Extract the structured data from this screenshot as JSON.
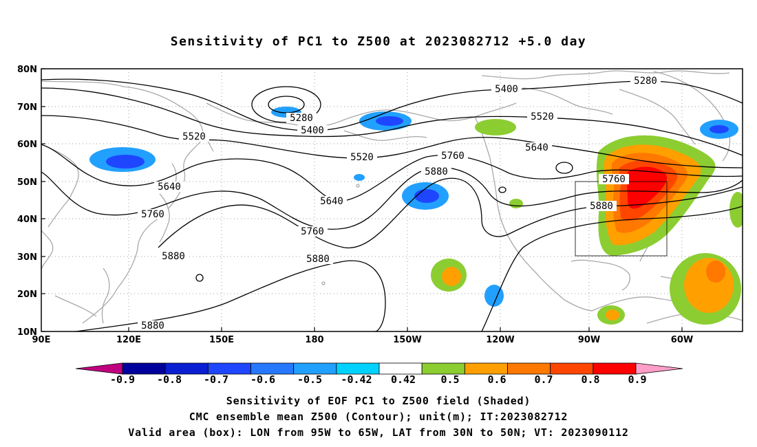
{
  "title": "Sensitivity of PC1 to Z500 at 2023082712 +5.0 day",
  "lat_labels": [
    "80N",
    "70N",
    "60N",
    "50N",
    "40N",
    "30N",
    "20N",
    "10N"
  ],
  "lon_labels": [
    "90E",
    "120E",
    "150E",
    "180",
    "150W",
    "120W",
    "90W",
    "60W"
  ],
  "colorbar": {
    "ticks": [
      "-0.9",
      "-0.8",
      "-0.7",
      "-0.6",
      "-0.5",
      "-0.42",
      "0.42",
      "0.5",
      "0.6",
      "0.7",
      "0.8",
      "0.9"
    ],
    "colors": [
      "#c0007f",
      "#00009c",
      "#0a1ed2",
      "#1e46ff",
      "#2678ff",
      "#22a0ff",
      "#00d2ff",
      "#ffffff",
      "#8ccd32",
      "#ffa000",
      "#ff7800",
      "#ff4600",
      "#ff0000",
      "#ff9ec8"
    ]
  },
  "contour_labels": [
    "5280",
    "5400",
    "5520",
    "5640",
    "5760",
    "5880"
  ],
  "caption": {
    "line1": "Sensitivity of EOF PC1 to Z500 field (Shaded)",
    "line2": "CMC ensemble mean Z500 (Contour); unit(m); IT:2023082712",
    "line3": "Valid area (box): LON from 95W to 65W, LAT from 30N to 50N; VT: 2023090112"
  },
  "valid_box": {
    "lon_min": "95W",
    "lon_max": "65W",
    "lat_min": "30N",
    "lat_max": "50N"
  }
}
